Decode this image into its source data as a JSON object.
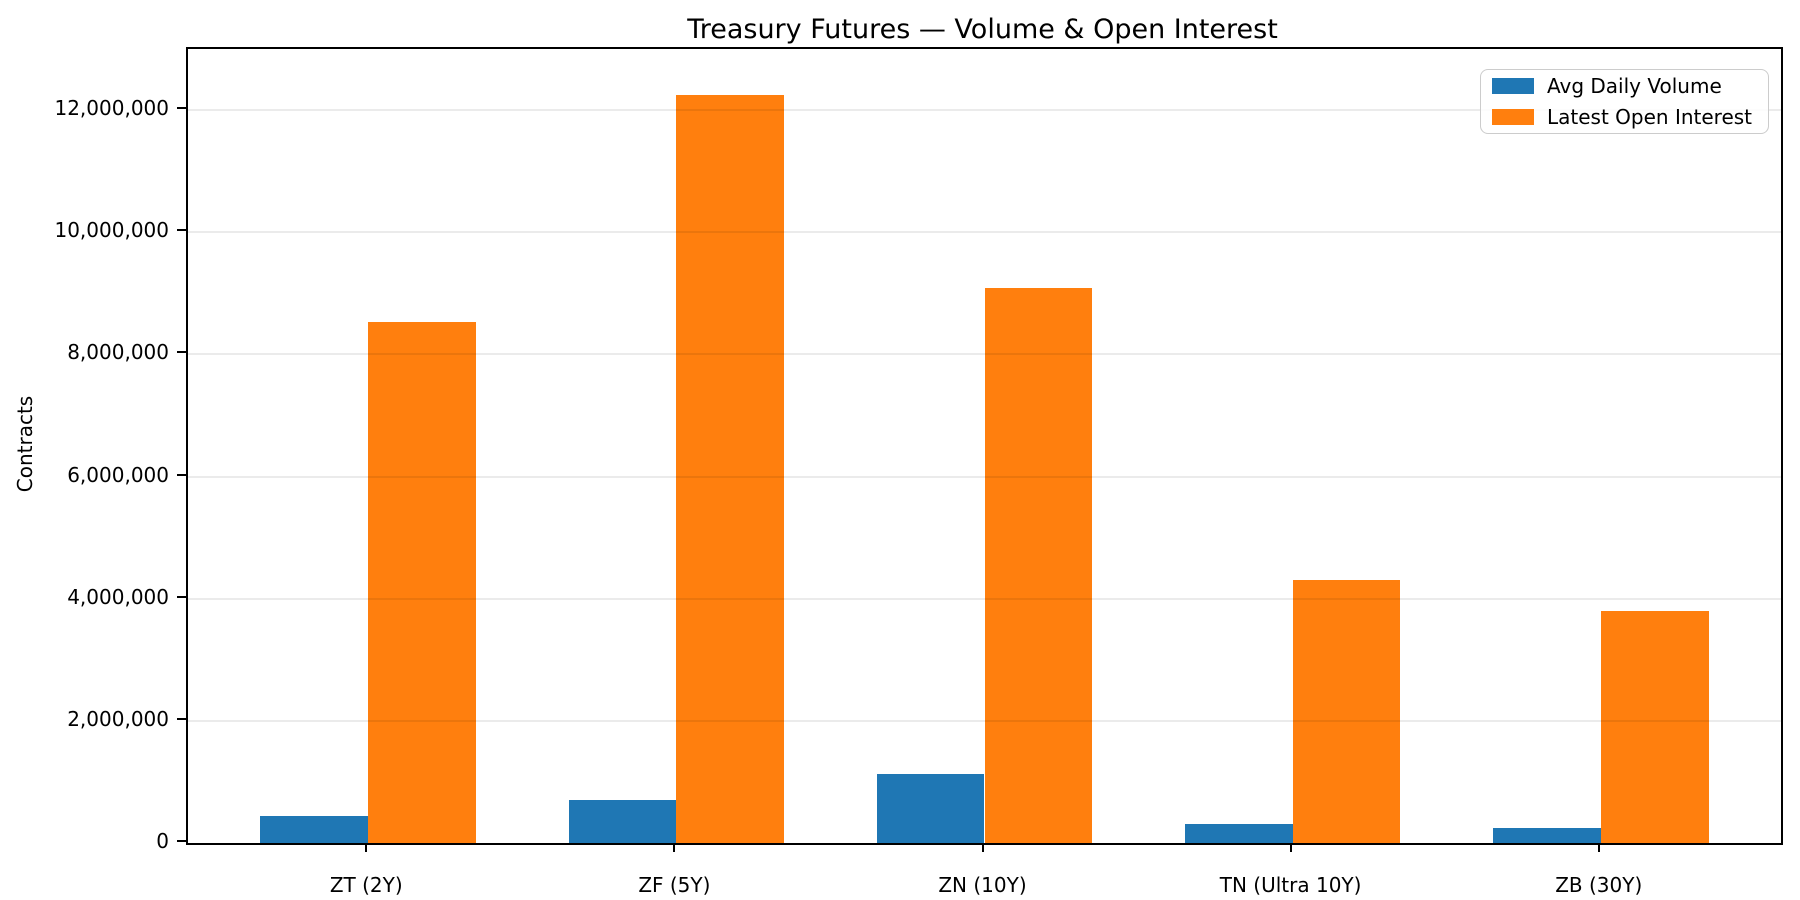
{
  "title": "Treasury Futures — Volume & Open Interest",
  "chart_data": {
    "type": "bar",
    "title": "Treasury Futures — Volume & Open Interest",
    "categories": [
      "ZT (2Y)",
      "ZF (5Y)",
      "ZN (10Y)",
      "TN (Ultra 10Y)",
      "ZB (30Y)"
    ],
    "series": [
      {
        "name": "Avg Daily Volume",
        "color": "#1f77b4",
        "values": [
          450000,
          700000,
          1130000,
          310000,
          250000
        ]
      },
      {
        "name": "Latest Open Interest",
        "color": "#ff7f0e",
        "values": [
          8530000,
          12250000,
          9090000,
          4300000,
          3800000
        ]
      }
    ],
    "xlabel": "",
    "ylabel": "Contracts",
    "ylim": [
      0,
      13000000
    ],
    "xlim": [
      -0.585,
      4.585
    ],
    "bar_width": 0.35,
    "ytick_step": 2000000,
    "ytick_labels": [
      "0",
      "2,000,000",
      "4,000,000",
      "6,000,000",
      "8,000,000",
      "10,000,000",
      "12,000,000"
    ],
    "grid": true,
    "grid_axis": "y",
    "legend_position": "upper right"
  }
}
